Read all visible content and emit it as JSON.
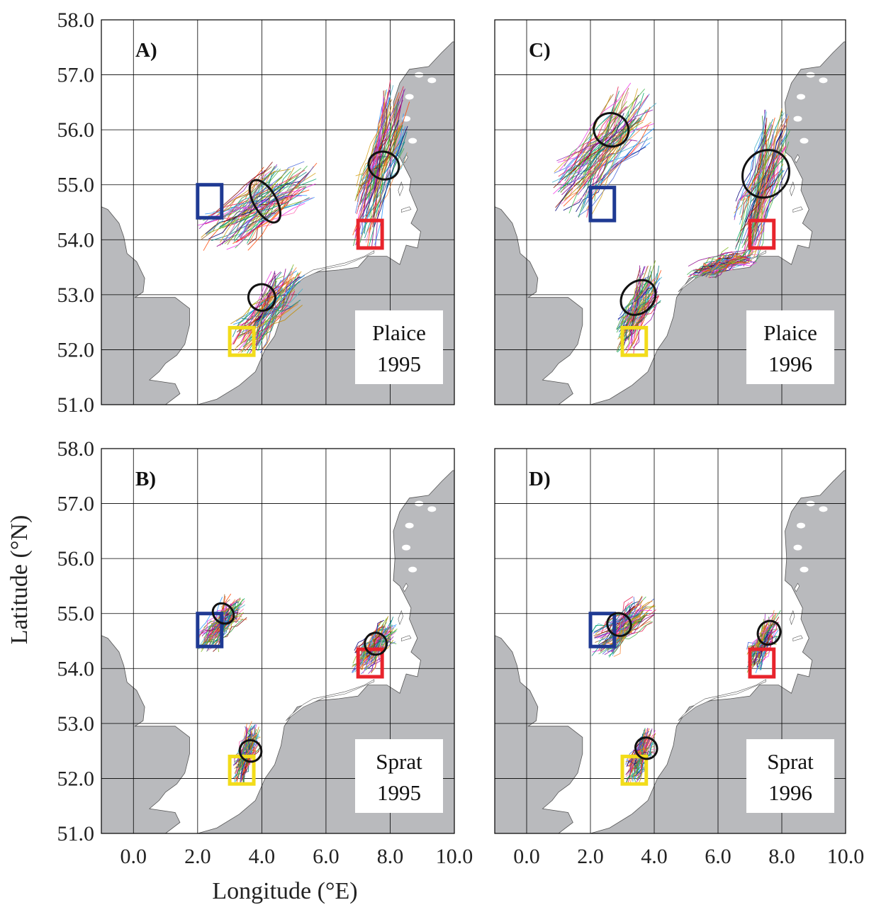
{
  "figure": {
    "ylabel": "Latitude (°N)",
    "xlabel": "Longitude (°E)",
    "lat_ticks": [
      "58.0",
      "57.0",
      "56.0",
      "55.0",
      "54.0",
      "53.0",
      "52.0",
      "51.0"
    ],
    "lon_ticks": [
      "0.0",
      "2.0",
      "4.0",
      "6.0",
      "8.0",
      "10.0"
    ],
    "lat_range": [
      51.0,
      58.0
    ],
    "lon_range": [
      -1.0,
      10.0
    ],
    "land_color": "#b9babd",
    "sea_color": "#ffffff"
  },
  "panels": [
    {
      "id": "A",
      "label": "A)",
      "species": "Plaice",
      "year": "1995",
      "release_boxes": [
        {
          "color": "#1f3a93",
          "lon": [
            2.0,
            2.75
          ],
          "lat": [
            54.4,
            55.0
          ]
        },
        {
          "color": "#e8242c",
          "lon": [
            7.0,
            7.75
          ],
          "lat": [
            53.85,
            54.35
          ]
        },
        {
          "color": "#f2dc1a",
          "lon": [
            3.0,
            3.75
          ],
          "lat": [
            51.9,
            52.4
          ]
        }
      ],
      "clouds": [
        {
          "lon": [
            2.0,
            5.7
          ],
          "lat": [
            53.8,
            55.4
          ]
        },
        {
          "lon": [
            6.8,
            8.6
          ],
          "lat": [
            53.8,
            56.9
          ]
        },
        {
          "lon": [
            3.0,
            5.3
          ],
          "lat": [
            51.9,
            53.5
          ]
        }
      ],
      "ellipses": [
        {
          "lon": 4.1,
          "lat": 54.7,
          "rlon": 0.35,
          "rlat": 0.43,
          "rot": -30
        },
        {
          "lon": 7.8,
          "lat": 55.35,
          "rlon": 0.48,
          "rlat": 0.25,
          "rot": 20
        },
        {
          "lon": 4.0,
          "lat": 52.95,
          "rlon": 0.42,
          "rlat": 0.24,
          "rot": 30
        }
      ]
    },
    {
      "id": "C",
      "label": "C)",
      "species": "Plaice",
      "year": "1996",
      "release_boxes": [
        {
          "color": "#1f3a93",
          "lon": [
            2.0,
            2.75
          ],
          "lat": [
            54.35,
            54.95
          ]
        },
        {
          "color": "#e8242c",
          "lon": [
            7.0,
            7.75
          ],
          "lat": [
            53.85,
            54.35
          ]
        },
        {
          "color": "#f2dc1a",
          "lon": [
            3.0,
            3.75
          ],
          "lat": [
            51.9,
            52.4
          ]
        }
      ],
      "clouds": [
        {
          "lon": [
            0.8,
            4.0
          ],
          "lat": [
            54.4,
            56.8
          ]
        },
        {
          "lon": [
            6.5,
            8.2
          ],
          "lat": [
            53.5,
            56.4
          ]
        },
        {
          "lon": [
            5.0,
            7.2
          ],
          "lat": [
            53.3,
            53.8
          ]
        },
        {
          "lon": [
            2.8,
            4.2
          ],
          "lat": [
            51.9,
            53.6
          ]
        }
      ],
      "ellipses": [
        {
          "lon": 2.65,
          "lat": 56.0,
          "rlon": 0.55,
          "rlat": 0.3,
          "rot": 25
        },
        {
          "lon": 7.5,
          "lat": 55.2,
          "rlon": 0.7,
          "rlat": 0.45,
          "rot": 40
        },
        {
          "lon": 3.5,
          "lat": 52.95,
          "rlon": 0.6,
          "rlat": 0.28,
          "rot": -45
        }
      ]
    },
    {
      "id": "B",
      "label": "B)",
      "species": "Sprat",
      "year": "1995",
      "release_boxes": [
        {
          "color": "#1f3a93",
          "lon": [
            2.0,
            2.75
          ],
          "lat": [
            54.4,
            55.0
          ]
        },
        {
          "color": "#e8242c",
          "lon": [
            7.0,
            7.75
          ],
          "lat": [
            53.85,
            54.35
          ]
        },
        {
          "color": "#f2dc1a",
          "lon": [
            3.0,
            3.75
          ],
          "lat": [
            51.9,
            52.4
          ]
        }
      ],
      "clouds": [
        {
          "lon": [
            2.0,
            3.5
          ],
          "lat": [
            54.3,
            55.3
          ]
        },
        {
          "lon": [
            6.8,
            8.2
          ],
          "lat": [
            53.9,
            54.9
          ]
        },
        {
          "lon": [
            3.1,
            3.9
          ],
          "lat": [
            51.9,
            53.0
          ]
        }
      ],
      "ellipses": [
        {
          "lon": 2.8,
          "lat": 55.0,
          "rlon": 0.35,
          "rlat": 0.17,
          "rot": 40
        },
        {
          "lon": 7.55,
          "lat": 54.45,
          "rlon": 0.34,
          "rlat": 0.2,
          "rot": -50
        },
        {
          "lon": 3.65,
          "lat": 52.5,
          "rlon": 0.33,
          "rlat": 0.2,
          "rot": -55
        }
      ]
    },
    {
      "id": "D",
      "label": "D)",
      "species": "Sprat",
      "year": "1996",
      "release_boxes": [
        {
          "color": "#1f3a93",
          "lon": [
            2.0,
            2.75
          ],
          "lat": [
            54.4,
            55.0
          ]
        },
        {
          "color": "#e8242c",
          "lon": [
            7.0,
            7.75
          ],
          "lat": [
            53.85,
            54.35
          ]
        },
        {
          "color": "#f2dc1a",
          "lon": [
            3.0,
            3.75
          ],
          "lat": [
            51.9,
            52.4
          ]
        }
      ],
      "clouds": [
        {
          "lon": [
            2.0,
            4.0
          ],
          "lat": [
            54.2,
            55.3
          ]
        },
        {
          "lon": [
            6.9,
            7.9
          ],
          "lat": [
            53.9,
            55.0
          ]
        },
        {
          "lon": [
            3.1,
            4.0
          ],
          "lat": [
            51.9,
            52.9
          ]
        }
      ],
      "ellipses": [
        {
          "lon": 2.9,
          "lat": 54.8,
          "rlon": 0.35,
          "rlat": 0.22,
          "rot": -60
        },
        {
          "lon": 7.6,
          "lat": 54.65,
          "rlon": 0.38,
          "rlat": 0.2,
          "rot": -60
        },
        {
          "lon": 3.75,
          "lat": 52.55,
          "rlon": 0.33,
          "rlat": 0.2,
          "rot": -55
        }
      ]
    }
  ]
}
